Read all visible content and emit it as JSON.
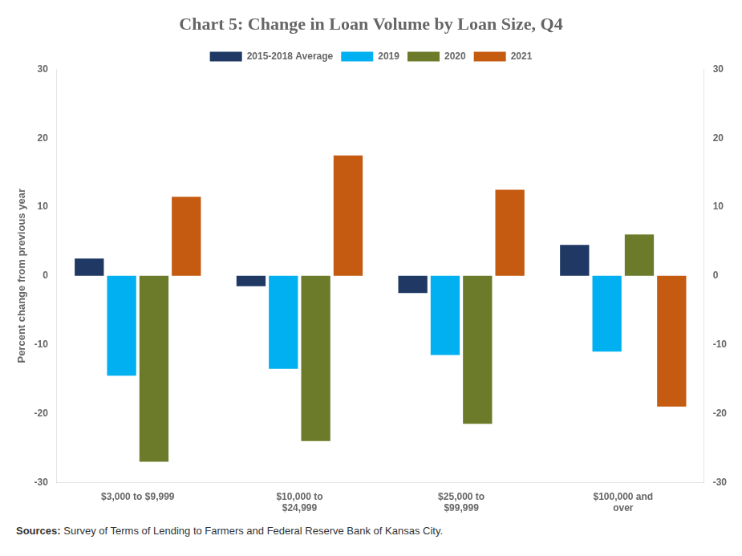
{
  "chart_data": {
    "type": "bar",
    "title": "Chart 5: Change in Loan Volume by Loan Size, Q4",
    "ylabel": "Percent change from previous year",
    "categories": [
      "$3,000 to $9,999",
      "$10,000 to\n$24,999",
      "$25,000 to\n$99,999",
      "$100,000 and\nover"
    ],
    "series": [
      {
        "name": "2015-2018 Average",
        "color": "#1F3864",
        "values": [
          2.5,
          -1.5,
          -2.5,
          4.5
        ]
      },
      {
        "name": "2019",
        "color": "#00B0F0",
        "values": [
          -14.5,
          -13.5,
          -11.5,
          -11.0
        ]
      },
      {
        "name": "2020",
        "color": "#6B7B2A",
        "values": [
          -27.0,
          -24.0,
          -21.5,
          6.0
        ]
      },
      {
        "name": "2021",
        "color": "#C55A11",
        "values": [
          11.5,
          17.5,
          12.5,
          -19.0
        ]
      }
    ],
    "ylim": [
      -30,
      30
    ],
    "yticks": [
      -30,
      -20,
      -10,
      0,
      10,
      20,
      30
    ],
    "y2lim": [
      -30,
      30
    ],
    "y2ticks": [
      -30,
      -20,
      -10,
      0,
      10,
      20,
      30
    ],
    "grid": false,
    "legend": "top",
    "annotations": [
      "Sources:",
      "Survey of Terms of Lending to Farmers and Federal Reserve Bank of Kansas City."
    ]
  }
}
